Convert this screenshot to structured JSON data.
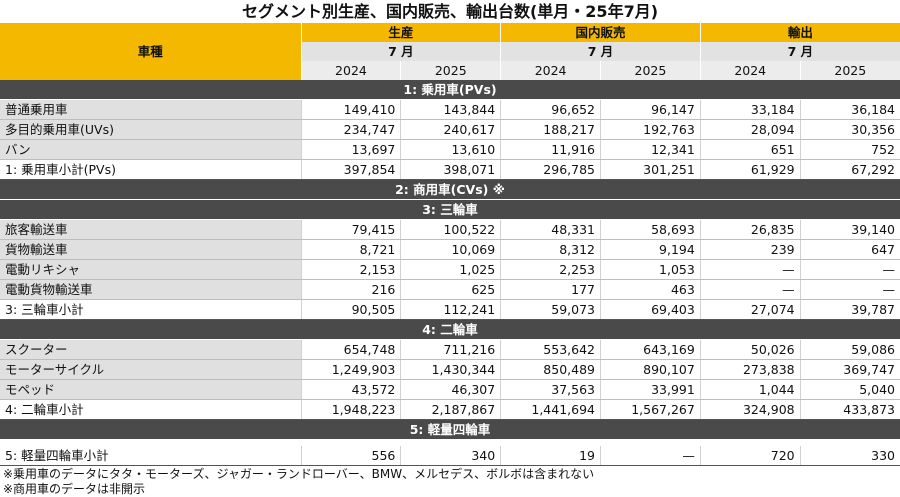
{
  "title": "セグメント別生産、国内販売、輸出台数(単月・25年7月)",
  "header": {
    "row_label": "車種",
    "groups": [
      "生産",
      "国内販売",
      "輸出"
    ],
    "month": "7 月",
    "years": [
      "2024",
      "2025",
      "2024",
      "2025",
      "2024",
      "2025"
    ]
  },
  "sections": [
    {
      "title": "1: 乗用車(PVs)",
      "rows": [
        {
          "label": "普通乗用車",
          "values": [
            "149,410",
            "143,844",
            "96,652",
            "96,147",
            "33,184",
            "36,184"
          ]
        },
        {
          "label": "多目的乗用車(UVs)",
          "values": [
            "234,747",
            "240,617",
            "188,217",
            "192,763",
            "28,094",
            "30,356"
          ]
        },
        {
          "label": "バン",
          "values": [
            "13,697",
            "13,610",
            "11,916",
            "12,341",
            "651",
            "752"
          ]
        }
      ],
      "subtotal": {
        "label": "1: 乗用車小計(PVs)",
        "values": [
          "397,854",
          "398,071",
          "296,785",
          "301,251",
          "61,929",
          "67,292"
        ]
      }
    },
    {
      "title": "2: 商用車(CVs) ※",
      "rows": []
    },
    {
      "title": "3: 三輪車",
      "rows": [
        {
          "label": "旅客輸送車",
          "values": [
            "79,415",
            "100,522",
            "48,331",
            "58,693",
            "26,835",
            "39,140"
          ]
        },
        {
          "label": "貨物輸送車",
          "values": [
            "8,721",
            "10,069",
            "8,312",
            "9,194",
            "239",
            "647"
          ]
        },
        {
          "label": "電動リキシャ",
          "values": [
            "2,153",
            "1,025",
            "2,253",
            "1,053",
            "—",
            "—"
          ]
        },
        {
          "label": "電動貨物輸送車",
          "values": [
            "216",
            "625",
            "177",
            "463",
            "—",
            "—"
          ]
        }
      ],
      "subtotal": {
        "label": "3: 三輪車小計",
        "values": [
          "90,505",
          "112,241",
          "59,073",
          "69,403",
          "27,074",
          "39,787"
        ]
      }
    },
    {
      "title": "4: 二輪車",
      "rows": [
        {
          "label": "スクーター",
          "values": [
            "654,748",
            "711,216",
            "553,642",
            "643,169",
            "50,026",
            "59,086"
          ]
        },
        {
          "label": "モーターサイクル",
          "values": [
            "1,249,903",
            "1,430,344",
            "850,489",
            "890,107",
            "273,838",
            "369,747"
          ]
        },
        {
          "label": "モペッド",
          "values": [
            "43,572",
            "46,307",
            "37,563",
            "33,991",
            "1,044",
            "5,040"
          ]
        }
      ],
      "subtotal": {
        "label": "4: 二輪車小計",
        "values": [
          "1,948,223",
          "2,187,867",
          "1,441,694",
          "1,567,267",
          "324,908",
          "433,873"
        ]
      }
    },
    {
      "title": "5: 軽量四輪車",
      "rows": [],
      "spacer": true,
      "subtotal": {
        "label": "5: 軽量四輪車小計",
        "values": [
          "556",
          "340",
          "19",
          "—",
          "720",
          "330"
        ]
      }
    }
  ],
  "notes": [
    "※乗用車のデータにタタ・モーターズ、ジャガー・ランドローバー、BMW、メルセデス、ボルボは含まれない",
    "※商用車のデータは非開示"
  ]
}
